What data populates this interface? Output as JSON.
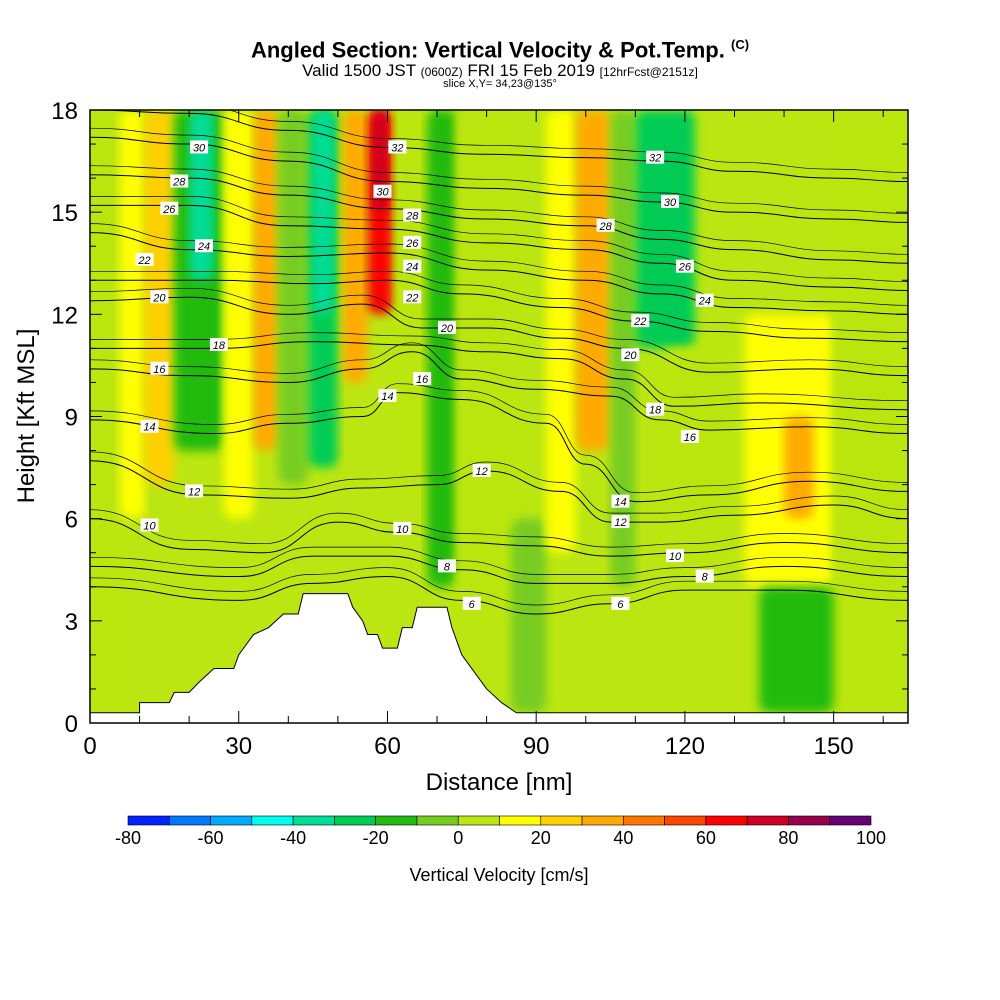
{
  "title": {
    "main": "Angled Section: Vertical Velocity & Pot.Temp.",
    "copyright": "(C)",
    "valid_prefix": "Valid 1500 JST",
    "valid_utc": "(0600Z)",
    "valid_date": "FRI 15 Feb 2019",
    "forecast": "[12hrFcst@2151z]",
    "slice": "slice X,Y= 34,23@135°"
  },
  "chart_data": {
    "type": "heatmap",
    "xlabel": "Distance [nm]",
    "ylabel": "Height [Kft MSL]",
    "xlim": [
      0,
      165
    ],
    "ylim": [
      0,
      18
    ],
    "xticks": [
      0,
      30,
      60,
      90,
      120,
      150
    ],
    "yticks": [
      0,
      3,
      6,
      9,
      12,
      15,
      18
    ],
    "colorbar": {
      "label": "Vertical Velocity [cm/s]",
      "tick_labels": [
        "-80",
        "-60",
        "-40",
        "-20",
        "0",
        "20",
        "40",
        "60",
        "80",
        "100"
      ],
      "levels": [
        -80,
        -70,
        -60,
        -50,
        -40,
        -30,
        -20,
        -10,
        0,
        10,
        20,
        30,
        40,
        50,
        60,
        70,
        80,
        90,
        100
      ],
      "colors": [
        "#0022ff",
        "#0077ff",
        "#00aaff",
        "#00ffee",
        "#00dd99",
        "#00cc55",
        "#22bb11",
        "#77cc22",
        "#bbe611",
        "#ffff00",
        "#ffd000",
        "#ffaa00",
        "#ff7700",
        "#ff4400",
        "#ff0000",
        "#cc0022",
        "#99004a",
        "#660077"
      ]
    },
    "velocity_cells": [
      {
        "x": [
          0,
          6
        ],
        "y": [
          0.3,
          18
        ],
        "v": 5
      },
      {
        "x": [
          6,
          11
        ],
        "y": [
          6,
          18
        ],
        "v": 15
      },
      {
        "x": [
          11,
          17
        ],
        "y": [
          7,
          18
        ],
        "v": 25
      },
      {
        "x": [
          17,
          27
        ],
        "y": [
          8,
          18
        ],
        "v": -20
      },
      {
        "x": [
          20,
          25
        ],
        "y": [
          13,
          18
        ],
        "v": -35
      },
      {
        "x": [
          27,
          33
        ],
        "y": [
          6,
          18
        ],
        "v": 15
      },
      {
        "x": [
          33,
          38
        ],
        "y": [
          8,
          18
        ],
        "v": 35
      },
      {
        "x": [
          38,
          44
        ],
        "y": [
          7,
          18
        ],
        "v": -10
      },
      {
        "x": [
          44,
          50
        ],
        "y": [
          7.5,
          18
        ],
        "v": -25
      },
      {
        "x": [
          45,
          49
        ],
        "y": [
          12,
          18
        ],
        "v": -40
      },
      {
        "x": [
          51,
          56
        ],
        "y": [
          10,
          18
        ],
        "v": 35
      },
      {
        "x": [
          56,
          61
        ],
        "y": [
          12,
          18
        ],
        "v": 60
      },
      {
        "x": [
          57,
          60
        ],
        "y": [
          15,
          18
        ],
        "v": 75
      },
      {
        "x": [
          62,
          68
        ],
        "y": [
          7,
          18
        ],
        "v": 5
      },
      {
        "x": [
          68,
          74
        ],
        "y": [
          4,
          18
        ],
        "v": -15
      },
      {
        "x": [
          74,
          86
        ],
        "y": [
          3,
          18
        ],
        "v": 5
      },
      {
        "x": [
          85,
          92
        ],
        "y": [
          0.3,
          6
        ],
        "v": -10
      },
      {
        "x": [
          92,
          98
        ],
        "y": [
          5,
          18
        ],
        "v": 15
      },
      {
        "x": [
          98,
          105
        ],
        "y": [
          8,
          18
        ],
        "v": 30
      },
      {
        "x": [
          105,
          110
        ],
        "y": [
          4,
          18
        ],
        "v": -10
      },
      {
        "x": [
          110,
          122
        ],
        "y": [
          11,
          18
        ],
        "v": -25
      },
      {
        "x": [
          116,
          132
        ],
        "y": [
          5,
          11
        ],
        "v": 5
      },
      {
        "x": [
          132,
          150
        ],
        "y": [
          4,
          12
        ],
        "v": 18
      },
      {
        "x": [
          140,
          146
        ],
        "y": [
          6,
          9
        ],
        "v": 35
      },
      {
        "x": [
          150,
          165
        ],
        "y": [
          0.3,
          18
        ],
        "v": 5
      },
      {
        "x": [
          135,
          150
        ],
        "y": [
          0.3,
          4
        ],
        "v": -12
      }
    ],
    "terrain": [
      [
        0,
        0.3
      ],
      [
        10,
        0.3
      ],
      [
        10,
        0.6
      ],
      [
        16,
        0.6
      ],
      [
        17,
        0.9
      ],
      [
        20,
        0.9
      ],
      [
        22,
        1.2
      ],
      [
        25,
        1.6
      ],
      [
        29,
        1.6
      ],
      [
        30,
        2.0
      ],
      [
        33,
        2.6
      ],
      [
        36,
        2.8
      ],
      [
        39,
        3.2
      ],
      [
        42,
        3.2
      ],
      [
        43,
        3.8
      ],
      [
        52,
        3.8
      ],
      [
        53,
        3.4
      ],
      [
        55,
        3.0
      ],
      [
        56,
        2.6
      ],
      [
        58,
        2.6
      ],
      [
        59,
        2.2
      ],
      [
        62,
        2.2
      ],
      [
        63,
        2.8
      ],
      [
        65,
        2.8
      ],
      [
        66,
        3.4
      ],
      [
        72,
        3.4
      ],
      [
        73,
        2.8
      ],
      [
        75,
        2.0
      ],
      [
        76,
        1.8
      ],
      [
        78,
        1.4
      ],
      [
        80,
        1.0
      ],
      [
        83,
        0.6
      ],
      [
        86,
        0.3
      ],
      [
        165,
        0.3
      ]
    ],
    "isentropes": [
      {
        "value": "6",
        "points": [
          [
            0,
            4.0
          ],
          [
            30,
            3.6
          ],
          [
            45,
            4.1
          ],
          [
            60,
            4.3
          ],
          [
            75,
            3.6
          ],
          [
            90,
            3.2
          ],
          [
            105,
            3.5
          ],
          [
            120,
            3.9
          ],
          [
            140,
            3.9
          ],
          [
            165,
            3.6
          ]
        ],
        "label_at": [
          [
            77,
            3.5
          ],
          [
            107,
            3.5
          ]
        ]
      },
      {
        "value": "8",
        "points": [
          [
            0,
            4.6
          ],
          [
            30,
            4.3
          ],
          [
            45,
            4.9
          ],
          [
            60,
            4.9
          ],
          [
            75,
            4.5
          ],
          [
            90,
            4.1
          ],
          [
            105,
            4.1
          ],
          [
            120,
            4.3
          ],
          [
            140,
            4.6
          ],
          [
            165,
            4.3
          ]
        ],
        "label_at": [
          [
            72,
            4.6
          ],
          [
            124,
            4.3
          ]
        ]
      },
      {
        "value": "10",
        "points": [
          [
            0,
            6.0
          ],
          [
            20,
            5.1
          ],
          [
            35,
            5.0
          ],
          [
            50,
            5.9
          ],
          [
            62,
            5.6
          ],
          [
            75,
            5.3
          ],
          [
            90,
            5.2
          ],
          [
            105,
            4.9
          ],
          [
            120,
            5.0
          ],
          [
            140,
            5.3
          ],
          [
            165,
            5.0
          ]
        ],
        "label_at": [
          [
            12,
            5.8
          ],
          [
            63,
            5.7
          ],
          [
            118,
            4.9
          ]
        ]
      },
      {
        "value": "12",
        "points": [
          [
            0,
            7.7
          ],
          [
            22,
            6.7
          ],
          [
            40,
            6.6
          ],
          [
            55,
            6.9
          ],
          [
            70,
            7.0
          ],
          [
            80,
            7.4
          ],
          [
            95,
            6.8
          ],
          [
            105,
            5.9
          ],
          [
            115,
            5.9
          ],
          [
            130,
            6.1
          ],
          [
            150,
            6.4
          ],
          [
            165,
            6.0
          ]
        ],
        "label_at": [
          [
            21,
            6.8
          ],
          [
            79,
            7.4
          ],
          [
            107,
            5.9
          ]
        ]
      },
      {
        "value": "14",
        "points": [
          [
            0,
            8.9
          ],
          [
            25,
            8.5
          ],
          [
            40,
            8.8
          ],
          [
            55,
            9.0
          ],
          [
            62,
            9.7
          ],
          [
            75,
            9.5
          ],
          [
            92,
            8.8
          ],
          [
            100,
            7.6
          ],
          [
            110,
            6.5
          ],
          [
            125,
            6.7
          ],
          [
            145,
            7.1
          ],
          [
            165,
            6.8
          ]
        ],
        "label_at": [
          [
            12,
            8.7
          ],
          [
            60,
            9.6
          ],
          [
            107,
            6.5
          ]
        ]
      },
      {
        "value": "16",
        "points": [
          [
            0,
            10.4
          ],
          [
            20,
            10.2
          ],
          [
            40,
            10.0
          ],
          [
            55,
            10.4
          ],
          [
            65,
            10.9
          ],
          [
            75,
            10.1
          ],
          [
            90,
            9.8
          ],
          [
            105,
            9.6
          ],
          [
            115,
            8.9
          ],
          [
            125,
            8.6
          ],
          [
            145,
            8.7
          ],
          [
            165,
            8.5
          ]
        ],
        "label_at": [
          [
            14,
            10.4
          ],
          [
            67,
            10.1
          ],
          [
            121,
            8.4
          ]
        ]
      },
      {
        "value": "18",
        "points": [
          [
            0,
            11.0
          ],
          [
            25,
            11.0
          ],
          [
            45,
            11.2
          ],
          [
            65,
            11.1
          ],
          [
            80,
            10.9
          ],
          [
            95,
            10.7
          ],
          [
            108,
            10.1
          ],
          [
            118,
            9.3
          ],
          [
            135,
            9.4
          ],
          [
            165,
            9.2
          ]
        ],
        "label_at": [
          [
            26,
            11.1
          ],
          [
            114,
            9.2
          ]
        ]
      },
      {
        "value": "20",
        "points": [
          [
            0,
            12.4
          ],
          [
            20,
            12.5
          ],
          [
            40,
            12.0
          ],
          [
            55,
            12.3
          ],
          [
            67,
            11.6
          ],
          [
            80,
            11.6
          ],
          [
            95,
            11.3
          ],
          [
            108,
            11.0
          ],
          [
            125,
            10.3
          ],
          [
            145,
            10.4
          ],
          [
            165,
            10.2
          ]
        ],
        "label_at": [
          [
            14,
            12.5
          ],
          [
            72,
            11.6
          ],
          [
            109,
            10.8
          ]
        ]
      },
      {
        "value": "22",
        "points": [
          [
            0,
            13.0
          ],
          [
            25,
            13.0
          ],
          [
            45,
            12.9
          ],
          [
            60,
            13.0
          ],
          [
            75,
            12.6
          ],
          [
            95,
            12.2
          ],
          [
            110,
            11.8
          ],
          [
            125,
            11.5
          ],
          [
            145,
            11.3
          ],
          [
            165,
            11.2
          ]
        ],
        "label_at": [
          [
            11,
            13.6
          ],
          [
            65,
            12.5
          ],
          [
            111,
            11.8
          ]
        ]
      },
      {
        "value": "24",
        "points": [
          [
            0,
            14.4
          ],
          [
            20,
            13.9
          ],
          [
            40,
            13.7
          ],
          [
            60,
            13.8
          ],
          [
            80,
            13.3
          ],
          [
            100,
            13.0
          ],
          [
            115,
            12.6
          ],
          [
            130,
            12.2
          ],
          [
            150,
            12.1
          ],
          [
            165,
            12.0
          ]
        ],
        "label_at": [
          [
            23,
            14.0
          ],
          [
            65,
            13.4
          ],
          [
            124,
            12.4
          ]
        ]
      },
      {
        "value": "26",
        "points": [
          [
            0,
            15.2
          ],
          [
            20,
            15.2
          ],
          [
            40,
            14.6
          ],
          [
            60,
            14.5
          ],
          [
            80,
            14.1
          ],
          [
            100,
            13.9
          ],
          [
            115,
            13.5
          ],
          [
            130,
            13.0
          ],
          [
            150,
            12.8
          ],
          [
            165,
            12.7
          ]
        ],
        "label_at": [
          [
            16,
            15.1
          ],
          [
            65,
            14.1
          ],
          [
            120,
            13.4
          ]
        ]
      },
      {
        "value": "28",
        "points": [
          [
            0,
            16.1
          ],
          [
            20,
            16.0
          ],
          [
            40,
            15.5
          ],
          [
            60,
            15.1
          ],
          [
            80,
            14.8
          ],
          [
            100,
            14.6
          ],
          [
            115,
            14.2
          ],
          [
            130,
            13.9
          ],
          [
            150,
            13.6
          ],
          [
            165,
            13.5
          ]
        ],
        "label_at": [
          [
            18,
            15.9
          ],
          [
            65,
            14.9
          ],
          [
            104,
            14.6
          ]
        ]
      },
      {
        "value": "30",
        "points": [
          [
            0,
            17.2
          ],
          [
            20,
            17.0
          ],
          [
            40,
            16.5
          ],
          [
            60,
            15.9
          ],
          [
            80,
            15.7
          ],
          [
            100,
            15.5
          ],
          [
            115,
            15.3
          ],
          [
            130,
            15.0
          ],
          [
            150,
            14.8
          ],
          [
            165,
            14.7
          ]
        ],
        "label_at": [
          [
            22,
            16.9
          ],
          [
            59,
            15.6
          ],
          [
            117,
            15.3
          ]
        ]
      },
      {
        "value": "32",
        "points": [
          [
            0,
            18.0
          ],
          [
            20,
            17.9
          ],
          [
            40,
            17.4
          ],
          [
            60,
            16.9
          ],
          [
            80,
            16.7
          ],
          [
            100,
            16.6
          ],
          [
            115,
            16.5
          ],
          [
            130,
            16.2
          ],
          [
            150,
            16.0
          ],
          [
            165,
            15.9
          ]
        ],
        "label_at": [
          [
            62,
            16.9
          ],
          [
            114,
            16.6
          ]
        ]
      }
    ],
    "grid": false
  }
}
